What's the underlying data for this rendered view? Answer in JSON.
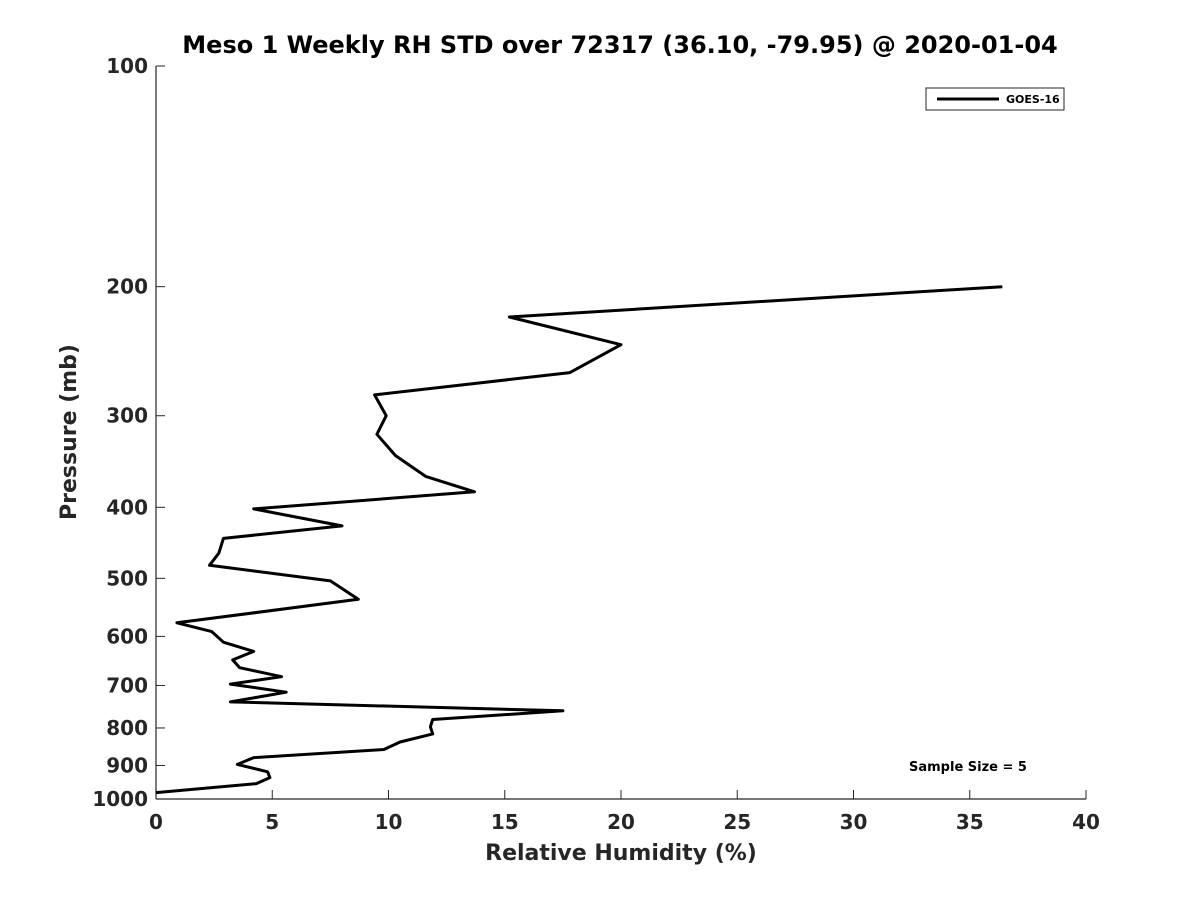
{
  "chart_data": {
    "type": "line",
    "title": "Meso 1 Weekly RH STD over 72317 (36.10, -79.95) @ 2020-01-04",
    "xlabel": "Relative Humidity (%)",
    "ylabel": "Pressure (mb)",
    "xlim": [
      0,
      40
    ],
    "ylim": [
      100,
      1000
    ],
    "y_scale": "log",
    "y_reversed": true,
    "x_ticks": [
      "0",
      "5",
      "10",
      "15",
      "20",
      "25",
      "30",
      "35",
      "40"
    ],
    "y_ticks": [
      "100",
      "200",
      "300",
      "400",
      "500",
      "600",
      "700",
      "800",
      "900",
      "1000"
    ],
    "grid": false,
    "legend_position": "top-right",
    "series": [
      {
        "name": "GOES-16",
        "color": "#000000",
        "x": [
          36.4,
          15.2,
          20.0,
          17.8,
          9.4,
          9.9,
          9.5,
          10.3,
          11.6,
          13.7,
          4.2,
          8.0,
          2.9,
          2.7,
          2.3,
          7.5,
          8.7,
          0.9,
          2.4,
          2.9,
          4.2,
          3.3,
          3.6,
          5.4,
          3.2,
          5.6,
          3.2,
          17.5,
          11.9,
          11.8,
          11.9,
          10.5,
          9.8,
          4.2,
          3.5,
          4.8,
          4.9,
          4.3,
          0.0
        ],
        "y": [
          200,
          220,
          240,
          262,
          281,
          300,
          318,
          340,
          363,
          381,
          402,
          424,
          441,
          462,
          480,
          504,
          534,
          575,
          591,
          611,
          629,
          646,
          662,
          681,
          697,
          715,
          737,
          758,
          779,
          797,
          815,
          836,
          856,
          878,
          897,
          918,
          935,
          953,
          980
        ]
      }
    ],
    "annotations": [
      "Sample Size = 5"
    ]
  }
}
